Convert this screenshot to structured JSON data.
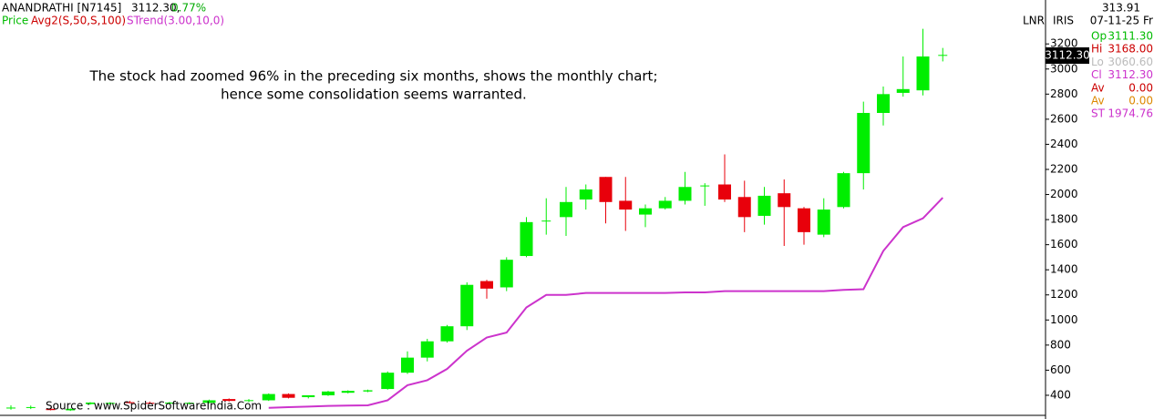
{
  "chart_data": {
    "type": "candlestick",
    "title": "ANANDRATHI [N7145]",
    "last_price": "3112.30,",
    "change": "0.77%",
    "legend": [
      "Price",
      "Avg2(S,50,S,100)",
      "STrend(3.00,10,0)"
    ],
    "toolbar": [
      "LNR",
      "IRIS"
    ],
    "price_tag": "3112.30",
    "annotation": [
      "The stock had zoomed 96% in the preceding six months, shows the monthly chart;",
      "hence some consolidation seems warranted."
    ],
    "source": "Source : www.SpiderSoftwareIndia.Com",
    "up_color": "#00ee00",
    "down_color": "#e8000b",
    "ylim": [
      240,
      3550
    ],
    "yticks": [
      400,
      600,
      800,
      1000,
      1200,
      1400,
      1600,
      1800,
      2000,
      2200,
      2400,
      2600,
      2800,
      3000,
      3200
    ],
    "open": [
      300,
      305,
      292,
      280,
      330,
      332,
      345,
      340,
      338,
      335,
      340,
      370,
      360,
      360,
      410,
      385,
      400,
      420,
      430,
      450,
      580,
      700,
      830,
      950,
      1310,
      1260,
      1510,
      1790,
      1820,
      1960,
      2140,
      1950,
      1840,
      1890,
      1950,
      2070,
      2080,
      1980,
      1830,
      2010,
      1890,
      1680,
      1900,
      2170,
      2650,
      2810,
      2830,
      3111.3
    ],
    "high": [
      320,
      318,
      300,
      295,
      345,
      345,
      355,
      350,
      348,
      345,
      365,
      375,
      370,
      415,
      415,
      400,
      435,
      440,
      445,
      590,
      750,
      850,
      960,
      1300,
      1320,
      1500,
      1820,
      1970,
      2060,
      2080,
      2140,
      2140,
      1920,
      1980,
      2180,
      2090,
      2320,
      2110,
      2060,
      2120,
      1900,
      1970,
      2180,
      2740,
      2860,
      3100,
      3320,
      3168
    ],
    "low": [
      285,
      290,
      280,
      275,
      325,
      325,
      335,
      330,
      330,
      328,
      335,
      350,
      345,
      355,
      375,
      375,
      395,
      415,
      425,
      445,
      570,
      670,
      820,
      920,
      1170,
      1230,
      1500,
      1680,
      1670,
      1880,
      1770,
      1710,
      1740,
      1880,
      1920,
      1910,
      1940,
      1700,
      1760,
      1590,
      1600,
      1660,
      1890,
      2040,
      2550,
      2780,
      2790,
      3060.6
    ],
    "close": [
      302,
      306,
      282,
      292,
      342,
      340,
      338,
      336,
      342,
      340,
      360,
      355,
      361,
      410,
      380,
      400,
      430,
      435,
      440,
      580,
      700,
      830,
      950,
      1280,
      1250,
      1480,
      1780,
      1792,
      1940,
      2040,
      1940,
      1880,
      1890,
      1950,
      2060,
      2072,
      1960,
      1820,
      1990,
      1900,
      1700,
      1880,
      2170,
      2650,
      2800,
      2840,
      3100,
      3112.3
    ],
    "series": [
      {
        "name": "STrend(3.00,10,0)",
        "color": "#cc33cc",
        "values": [
          null,
          null,
          null,
          null,
          null,
          null,
          null,
          null,
          null,
          null,
          null,
          null,
          null,
          300,
          305,
          310,
          315,
          318,
          320,
          360,
          480,
          520,
          610,
          755,
          860,
          900,
          1100,
          1200,
          1200,
          1215,
          1215,
          1215,
          1215,
          1215,
          1220,
          1220,
          1230,
          1230,
          1230,
          1230,
          1230,
          1230,
          1240,
          1245,
          1550,
          1740,
          1810,
          1974.76
        ]
      }
    ]
  },
  "info_panel": {
    "top": "313.91",
    "date": "07-11-25 Fri",
    "rows": [
      {
        "label": "Op",
        "value": "3111.30",
        "color": "#00bb00"
      },
      {
        "label": "Hi",
        "value": "3168.00",
        "color": "#cc0000"
      },
      {
        "label": "Lo",
        "value": "3060.60",
        "color": "#bbbbbb"
      },
      {
        "label": "Cl",
        "value": "3112.30",
        "color": "#cc33cc"
      },
      {
        "label": "Av",
        "value": "0.00",
        "color": "#cc0000"
      },
      {
        "label": "Av",
        "value": "0.00",
        "color": "#dd8800"
      },
      {
        "label": "ST",
        "value": "1974.76",
        "color": "#cc33cc"
      }
    ]
  }
}
